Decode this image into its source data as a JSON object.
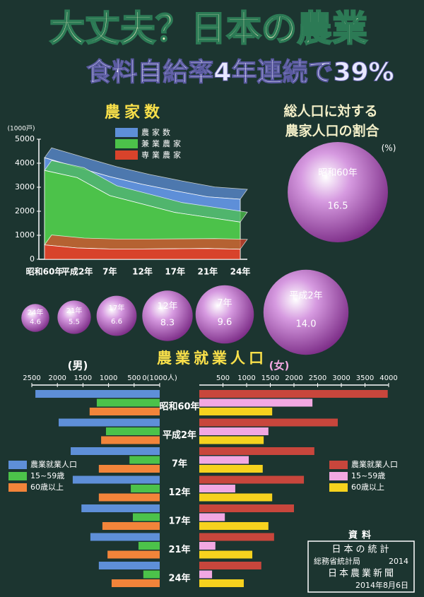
{
  "title": "大丈夫？日本の農業",
  "subtitle": "食料自給率4年連続で39%",
  "chart_data": [
    {
      "type": "area",
      "title": "農家数",
      "ylabel": "(1000戸)",
      "categories": [
        "昭和60年",
        "平成2年",
        "7年",
        "12年",
        "17年",
        "21年",
        "24年"
      ],
      "ylim": [
        0,
        5000
      ],
      "yticks": [
        0,
        1000,
        2000,
        3000,
        4000,
        5000
      ],
      "series": [
        {
          "name": "農家数",
          "color": "#5e8fd8",
          "values": [
            4230,
            3830,
            3440,
            3120,
            2850,
            2600,
            2500
          ]
        },
        {
          "name": "兼業農家",
          "color": "#4cc24a",
          "values": [
            3700,
            3400,
            2650,
            2300,
            1950,
            1750,
            1550
          ]
        },
        {
          "name": "専業農家",
          "color": "#d8432b",
          "values": [
            600,
            470,
            430,
            430,
            440,
            450,
            420
          ]
        }
      ]
    },
    {
      "type": "bubble",
      "title": [
        "総人口に対する",
        "農家人口の割合"
      ],
      "unit": "(%)",
      "categories": [
        "昭和60年",
        "平成2年",
        "7年",
        "12年",
        "17年",
        "21年",
        "24年"
      ],
      "values": [
        16.5,
        14,
        9.6,
        8.3,
        6.6,
        5.5,
        4.6
      ],
      "value_labels": [
        "16.5",
        "14.0",
        "9.6",
        "8.3",
        "6.6",
        "5.5",
        "4.6"
      ],
      "color": "#8a2e8f"
    },
    {
      "type": "butterfly",
      "title": "農業就業人口",
      "categories": [
        "昭和60年",
        "平成2年",
        "7年",
        "12年",
        "17年",
        "21年",
        "24年"
      ],
      "left": {
        "label": "(男)",
        "xlim": [
          0,
          2500
        ],
        "xticks": [
          2500,
          2000,
          1500,
          1000,
          500,
          {
            "value": 0,
            "label": "0(1000人)"
          }
        ],
        "series": [
          {
            "name": "農業就業人口",
            "color": "#5e8fd8",
            "values": [
              2430,
              1975,
              1740,
              1700,
              1530,
              1355,
              1190
            ]
          },
          {
            "name": "15~59歳",
            "color": "#4cc24a",
            "values": [
              1230,
              1050,
              590,
              565,
              525,
              415,
              320
            ]
          },
          {
            "name": "60歳以上",
            "color": "#f2843a",
            "values": [
              1370,
              1145,
              1190,
              1190,
              1120,
              1020,
              940
            ]
          }
        ]
      },
      "right": {
        "label": "(女)",
        "xlim": [
          0,
          4000
        ],
        "xticks": [
          500,
          1000,
          1500,
          2000,
          2500,
          3000,
          3500,
          4000
        ],
        "series": [
          {
            "name": "農業就業人口",
            "color": "#c8463c",
            "values": [
              3980,
              2925,
              2430,
              2210,
              2000,
              1580,
              1310
            ]
          },
          {
            "name": "15~59歳",
            "color": "#f2a8e2",
            "values": [
              2390,
              1460,
              1045,
              760,
              540,
              340,
              270
            ]
          },
          {
            "name": "60歳以上",
            "color": "#f6d21e",
            "values": [
              1540,
              1360,
              1340,
              1540,
              1460,
              1120,
              940
            ]
          }
        ]
      }
    }
  ],
  "source": {
    "heading": "資料",
    "book": "日本の統計",
    "publisher": "総務省統計局",
    "year": "2014",
    "paper": "日本農業新聞",
    "date": "2014年8月6日"
  }
}
